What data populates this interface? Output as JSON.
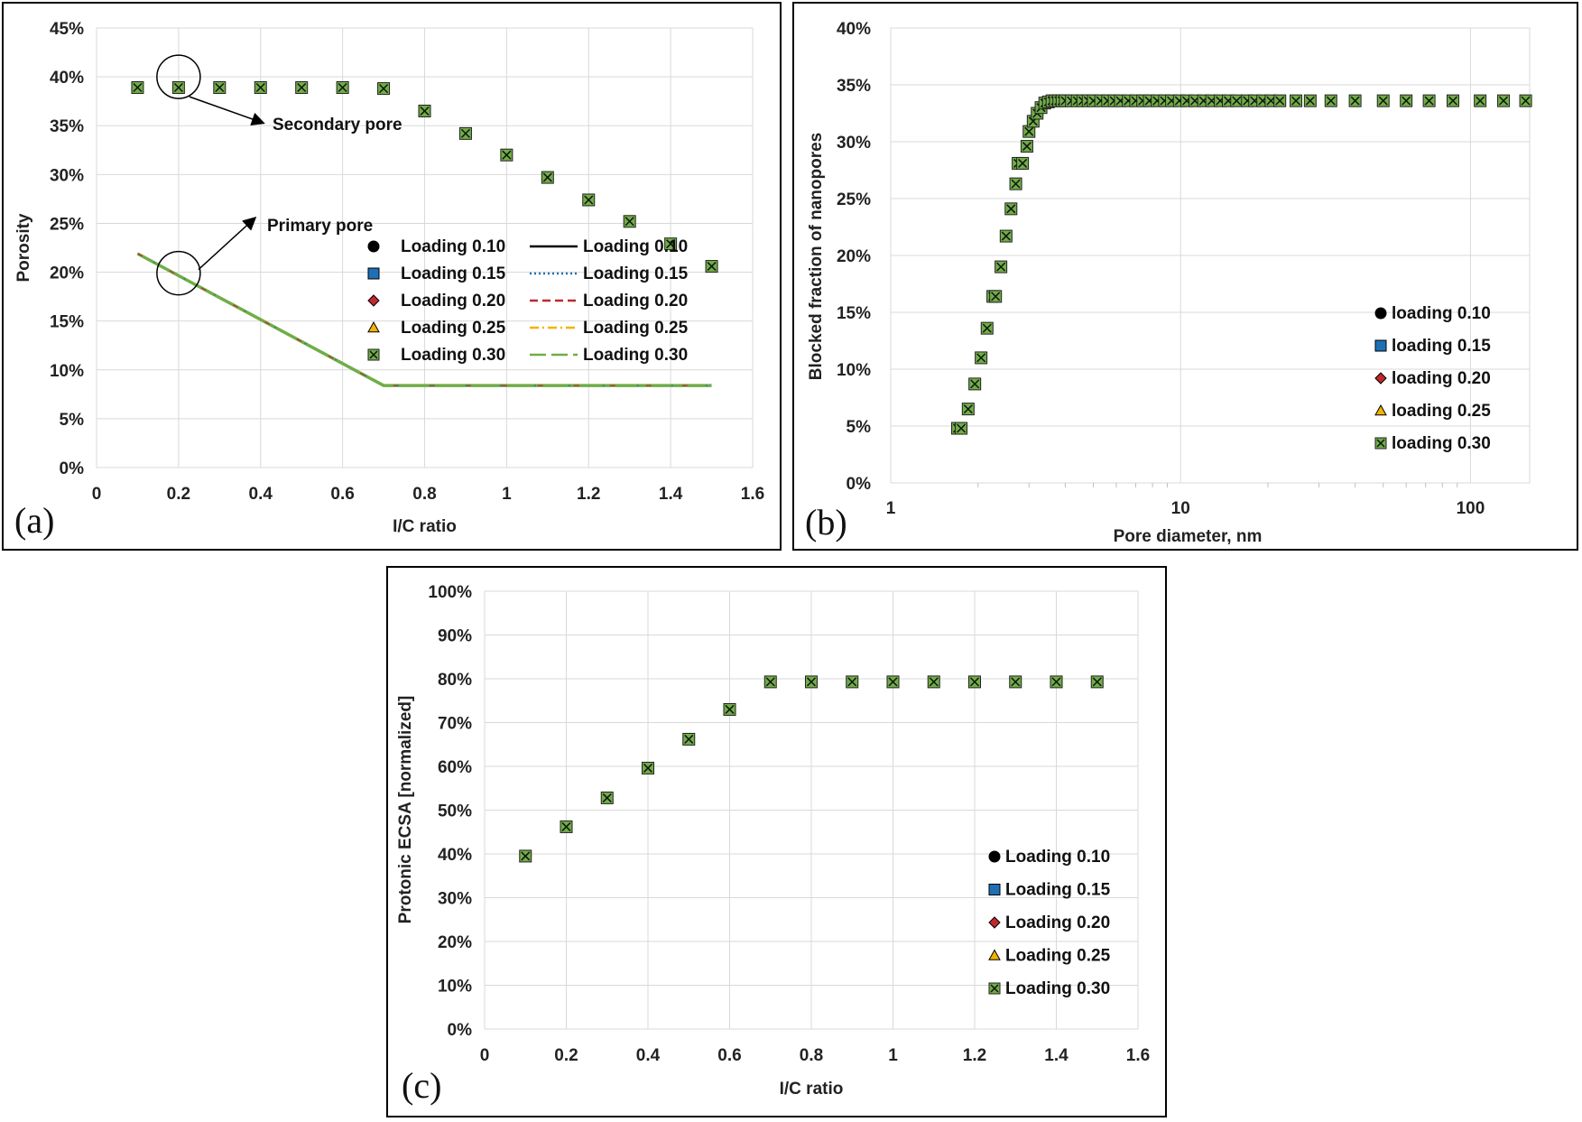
{
  "colors": {
    "loading_010": "#000000",
    "loading_015": "#1f6fb4",
    "loading_020": "#c0282d",
    "loading_025": "#f2b300",
    "loading_030": "#70ad47"
  },
  "chart_data": [
    {
      "id": "a",
      "type": "scatter",
      "panel_label": "(a)",
      "xlabel": "I/C ratio",
      "ylabel": "Porosity",
      "xlim": [
        0,
        1.6
      ],
      "ylim": [
        0,
        0.45
      ],
      "x_ticks": [
        "0",
        "0.2",
        "0.4",
        "0.6",
        "0.8",
        "1",
        "1.2",
        "1.4",
        "1.6"
      ],
      "y_ticks": [
        "0%",
        "5%",
        "10%",
        "15%",
        "20%",
        "25%",
        "30%",
        "35%",
        "40%",
        "45%"
      ],
      "grid": true,
      "legend_position": "center-right",
      "annotations": [
        "Secondary pore",
        "Primary pore"
      ],
      "marker_series": [
        {
          "name": "Loading 0.10",
          "marker": "circle"
        },
        {
          "name": "Loading 0.15",
          "marker": "square"
        },
        {
          "name": "Loading 0.20",
          "marker": "diamond"
        },
        {
          "name": "Loading 0.25",
          "marker": "triangle"
        },
        {
          "name": "Loading 0.30",
          "marker": "xsquare"
        }
      ],
      "line_series": [
        {
          "name": "Loading 0.10",
          "dash": "solid"
        },
        {
          "name": "Loading 0.15",
          "dash": "dotted"
        },
        {
          "name": "Loading 0.20",
          "dash": "dashed"
        },
        {
          "name": "Loading 0.25",
          "dash": "dashdot"
        },
        {
          "name": "Loading 0.30",
          "dash": "longdash"
        }
      ],
      "secondary_pore": {
        "x": [
          0.1,
          0.2,
          0.3,
          0.4,
          0.5,
          0.6,
          0.7,
          0.8,
          0.9,
          1.0,
          1.1,
          1.2,
          1.3,
          1.4,
          1.5
        ],
        "y": [
          0.389,
          0.389,
          0.389,
          0.389,
          0.389,
          0.389,
          0.388,
          0.365,
          0.342,
          0.32,
          0.297,
          0.274,
          0.252,
          0.229,
          0.206
        ]
      },
      "primary_pore": {
        "x": [
          0.1,
          0.7,
          1.5
        ],
        "y": [
          0.219,
          0.084,
          0.084
        ]
      }
    },
    {
      "id": "b",
      "type": "scatter",
      "panel_label": "(b)",
      "xlabel": "Pore diameter, nm",
      "ylabel": "Blocked fraction of nanopores",
      "xscale": "log",
      "xlim": [
        1,
        160
      ],
      "ylim": [
        0,
        0.4
      ],
      "x_ticks": [
        "1",
        "10",
        "100"
      ],
      "y_ticks": [
        "0%",
        "5%",
        "10%",
        "15%",
        "20%",
        "25%",
        "30%",
        "35%",
        "40%"
      ],
      "grid": true,
      "legend_position": "center-right",
      "series": [
        {
          "name": "loading 0.10",
          "marker": "circle"
        },
        {
          "name": "loading 0.15",
          "marker": "square"
        },
        {
          "name": "loading 0.20",
          "marker": "diamond"
        },
        {
          "name": "loading 0.25",
          "marker": "triangle"
        },
        {
          "name": "loading 0.30",
          "marker": "xsquare"
        }
      ],
      "points": {
        "x": [
          1.7,
          1.75,
          1.85,
          1.95,
          2.05,
          2.15,
          2.25,
          2.3,
          2.4,
          2.5,
          2.6,
          2.7,
          2.75,
          2.85,
          2.95,
          3.0,
          3.1,
          3.2,
          3.3,
          3.4,
          3.5,
          3.6,
          3.7,
          3.8,
          3.9,
          4.0,
          4.2,
          4.4,
          4.6,
          4.8,
          5.0,
          5.3,
          5.6,
          5.9,
          6.2,
          6.6,
          7.0,
          7.4,
          7.8,
          8.3,
          8.8,
          9.3,
          9.9,
          10.5,
          11.2,
          12.0,
          12.8,
          13.7,
          14.6,
          15.6,
          17.0,
          18.0,
          19.2,
          20.5,
          22.0,
          25.0,
          28.0,
          33.0,
          40.0,
          50.0,
          60.0,
          72.0,
          87.0,
          108.0,
          130.0,
          155.0
        ],
        "y": [
          0.048,
          0.048,
          0.065,
          0.087,
          0.11,
          0.136,
          0.164,
          0.164,
          0.19,
          0.217,
          0.241,
          0.263,
          0.281,
          0.281,
          0.296,
          0.309,
          0.318,
          0.325,
          0.33,
          0.334,
          0.335,
          0.336,
          0.336,
          0.336,
          0.336,
          0.336,
          0.336,
          0.336,
          0.336,
          0.336,
          0.336,
          0.336,
          0.336,
          0.336,
          0.336,
          0.336,
          0.336,
          0.336,
          0.336,
          0.336,
          0.336,
          0.336,
          0.336,
          0.336,
          0.336,
          0.336,
          0.336,
          0.336,
          0.336,
          0.336,
          0.336,
          0.336,
          0.336,
          0.336,
          0.336,
          0.336,
          0.336,
          0.336,
          0.336,
          0.336,
          0.336,
          0.336,
          0.336,
          0.336,
          0.336,
          0.336
        ]
      }
    },
    {
      "id": "c",
      "type": "scatter",
      "panel_label": "(c)",
      "xlabel": "I/C ratio",
      "ylabel": "Protonic ECSA [normalized]",
      "xlim": [
        0,
        1.6
      ],
      "ylim": [
        0,
        1.0
      ],
      "x_ticks": [
        "0",
        "0.2",
        "0.4",
        "0.6",
        "0.8",
        "1",
        "1.2",
        "1.4",
        "1.6"
      ],
      "y_ticks": [
        "0%",
        "10%",
        "20%",
        "30%",
        "40%",
        "50%",
        "60%",
        "70%",
        "80%",
        "90%",
        "100%"
      ],
      "grid": true,
      "legend_position": "bottom-right",
      "series": [
        {
          "name": "Loading 0.10",
          "marker": "circle"
        },
        {
          "name": "Loading 0.15",
          "marker": "square"
        },
        {
          "name": "Loading 0.20",
          "marker": "diamond"
        },
        {
          "name": "Loading 0.25",
          "marker": "triangle"
        },
        {
          "name": "Loading 0.30",
          "marker": "xsquare"
        }
      ],
      "points": {
        "x": [
          0.1,
          0.2,
          0.3,
          0.4,
          0.5,
          0.6,
          0.7,
          0.8,
          0.9,
          1.0,
          1.1,
          1.2,
          1.3,
          1.4,
          1.5
        ],
        "y": [
          0.395,
          0.462,
          0.528,
          0.596,
          0.662,
          0.73,
          0.793,
          0.793,
          0.793,
          0.793,
          0.793,
          0.793,
          0.793,
          0.793,
          0.793
        ]
      }
    }
  ]
}
